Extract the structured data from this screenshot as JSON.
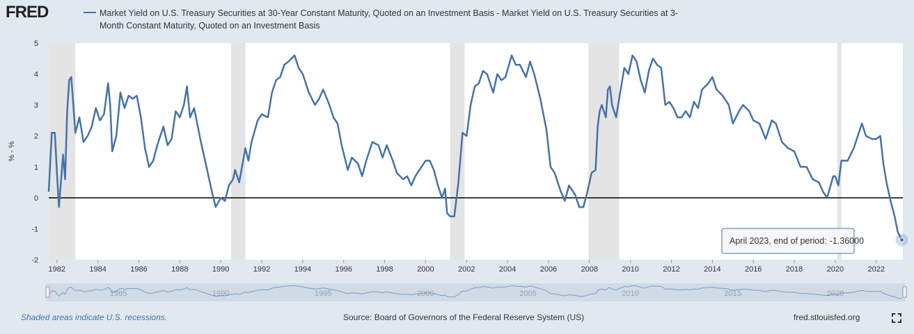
{
  "header": {
    "logo": "FRED",
    "legend": "Market Yield on U.S. Treasury Securities at 30-Year Constant Maturity, Quoted on an Investment Basis - Market Yield on U.S. Treasury Securities at 3-Month Constant Maturity, Quoted on an Investment Basis"
  },
  "chart_data": {
    "type": "line",
    "ylabel": "% - %",
    "xlim": [
      1981.6,
      2023.3
    ],
    "ylim": [
      -2,
      5
    ],
    "xticks": [
      1982,
      1984,
      1986,
      1988,
      1990,
      1992,
      1994,
      1996,
      1998,
      2000,
      2002,
      2004,
      2006,
      2008,
      2010,
      2012,
      2014,
      2016,
      2018,
      2020,
      2022
    ],
    "yticks": [
      -2,
      -1,
      0,
      1,
      2,
      3,
      4,
      5
    ],
    "grid": false,
    "recessions": [
      [
        1981.6,
        1982.9
      ],
      [
        1990.5,
        1991.2
      ],
      [
        2001.2,
        2001.9
      ],
      [
        2007.95,
        2009.45
      ],
      [
        2020.1,
        2020.3
      ]
    ],
    "series": [
      {
        "name": "Market Yield on U.S. Treasury Securities at 30-Year Constant Maturity, Quoted on an Investment Basis - Market Yield on U.S. Treasury Securities at 3-Month Constant Maturity, Quoted on an Investment Basis",
        "color": "#4572a7",
        "x": [
          1981.6,
          1981.75,
          1981.9,
          1982.0,
          1982.1,
          1982.3,
          1982.4,
          1982.5,
          1982.6,
          1982.7,
          1982.9,
          1983.1,
          1983.3,
          1983.5,
          1983.7,
          1983.9,
          1984.1,
          1984.3,
          1984.5,
          1984.6,
          1984.7,
          1984.9,
          1985.1,
          1985.3,
          1985.5,
          1985.7,
          1985.9,
          1986.1,
          1986.3,
          1986.5,
          1986.7,
          1986.9,
          1987.2,
          1987.4,
          1987.6,
          1987.8,
          1988.0,
          1988.2,
          1988.35,
          1988.5,
          1988.7,
          1989.0,
          1989.3,
          1989.6,
          1989.75,
          1990.0,
          1990.2,
          1990.4,
          1990.6,
          1990.7,
          1990.9,
          1991.2,
          1991.35,
          1991.5,
          1991.8,
          1992.0,
          1992.3,
          1992.5,
          1992.7,
          1992.9,
          1993.1,
          1993.3,
          1993.6,
          1993.8,
          1994.0,
          1994.3,
          1994.6,
          1994.8,
          1995.0,
          1995.3,
          1995.5,
          1995.7,
          1995.9,
          1996.2,
          1996.4,
          1996.7,
          1996.9,
          1997.1,
          1997.4,
          1997.7,
          1997.9,
          1998.1,
          1998.4,
          1998.6,
          1998.9,
          1999.1,
          1999.3,
          1999.5,
          1999.8,
          2000.0,
          2000.2,
          2000.4,
          2000.6,
          2000.8,
          2000.95,
          2001.05,
          2001.2,
          2001.4,
          2001.6,
          2001.8,
          2002.0,
          2002.2,
          2002.4,
          2002.6,
          2002.8,
          2003.0,
          2003.3,
          2003.5,
          2003.7,
          2003.9,
          2004.2,
          2004.4,
          2004.6,
          2004.9,
          2005.1,
          2005.3,
          2005.6,
          2005.9,
          2006.1,
          2006.3,
          2006.6,
          2006.8,
          2007.0,
          2007.3,
          2007.5,
          2007.7,
          2007.9,
          2008.1,
          2008.3,
          2008.4,
          2008.5,
          2008.6,
          2008.8,
          2008.9,
          2009.0,
          2009.1,
          2009.3,
          2009.5,
          2009.7,
          2009.9,
          2010.1,
          2010.3,
          2010.5,
          2010.7,
          2010.9,
          2011.1,
          2011.3,
          2011.5,
          2011.7,
          2011.9,
          2012.1,
          2012.3,
          2012.5,
          2012.7,
          2012.9,
          2013.1,
          2013.3,
          2013.5,
          2013.8,
          2014.0,
          2014.2,
          2014.5,
          2014.8,
          2015.0,
          2015.3,
          2015.5,
          2015.8,
          2016.0,
          2016.3,
          2016.6,
          2016.9,
          2017.1,
          2017.4,
          2017.7,
          2018.0,
          2018.3,
          2018.6,
          2018.9,
          2019.2,
          2019.4,
          2019.6,
          2019.9,
          2020.0,
          2020.15,
          2020.3,
          2020.6,
          2020.9,
          2021.1,
          2021.3,
          2021.5,
          2021.8,
          2022.0,
          2022.2,
          2022.35,
          2022.5,
          2022.7,
          2022.9,
          2023.05,
          2023.25
        ],
        "values": [
          0.2,
          2.1,
          2.1,
          0.8,
          -0.3,
          1.4,
          0.6,
          2.8,
          3.8,
          3.9,
          2.1,
          2.6,
          1.8,
          2.0,
          2.3,
          2.9,
          2.5,
          2.7,
          3.7,
          3.0,
          1.5,
          2.0,
          3.4,
          2.9,
          3.3,
          3.2,
          3.3,
          2.6,
          1.6,
          1.0,
          1.2,
          1.7,
          2.3,
          1.7,
          1.9,
          2.8,
          2.6,
          3.0,
          3.6,
          2.6,
          2.9,
          1.9,
          1.0,
          0.1,
          -0.3,
          0.0,
          -0.1,
          0.4,
          0.6,
          0.9,
          0.5,
          1.6,
          1.2,
          1.8,
          2.5,
          2.7,
          2.6,
          3.4,
          3.8,
          3.9,
          4.3,
          4.4,
          4.6,
          4.2,
          4.0,
          3.4,
          3.0,
          3.2,
          3.5,
          3.0,
          2.6,
          2.4,
          1.7,
          0.9,
          1.3,
          1.1,
          0.7,
          1.2,
          1.8,
          1.7,
          1.3,
          1.7,
          1.2,
          0.8,
          0.6,
          0.7,
          0.4,
          0.7,
          1.0,
          1.2,
          1.2,
          0.9,
          0.4,
          0.0,
          0.3,
          -0.5,
          -0.6,
          -0.6,
          0.5,
          2.1,
          2.0,
          3.0,
          3.6,
          3.7,
          4.1,
          4.0,
          3.4,
          4.0,
          3.8,
          3.9,
          4.6,
          4.3,
          4.3,
          3.9,
          4.4,
          4.0,
          3.2,
          2.2,
          1.0,
          0.8,
          0.2,
          -0.1,
          0.4,
          0.1,
          -0.3,
          -0.3,
          0.2,
          0.8,
          0.9,
          2.3,
          2.8,
          3.0,
          2.6,
          3.5,
          3.6,
          3.0,
          2.6,
          3.4,
          4.2,
          4.0,
          4.6,
          4.4,
          3.8,
          3.4,
          4.1,
          4.5,
          4.3,
          4.2,
          3.0,
          3.1,
          2.9,
          2.6,
          2.6,
          2.8,
          2.6,
          3.1,
          2.9,
          3.5,
          3.7,
          3.9,
          3.5,
          3.3,
          3.0,
          2.4,
          2.8,
          3.0,
          2.8,
          2.5,
          2.4,
          1.9,
          2.5,
          2.4,
          1.8,
          1.6,
          1.5,
          1.0,
          1.0,
          0.6,
          0.5,
          0.2,
          0.0,
          0.7,
          0.7,
          0.4,
          1.2,
          1.2,
          1.6,
          2.0,
          2.4,
          2.0,
          1.9,
          1.9,
          2.0,
          1.1,
          0.5,
          -0.1,
          -0.6,
          -1.1,
          -1.36
        ]
      }
    ],
    "tooltip": {
      "label": "April 2023, end of period:",
      "value": "-1.36000"
    }
  },
  "navigator": {
    "xticks": [
      1985,
      1990,
      1995,
      2000,
      2005,
      2010,
      2015,
      2020
    ]
  },
  "footer": {
    "note": "Shaded areas indicate U.S. recessions.",
    "source": "Source: Board of Governors of the Federal Reserve System (US)",
    "site": "fred.stlouisfed.org"
  }
}
